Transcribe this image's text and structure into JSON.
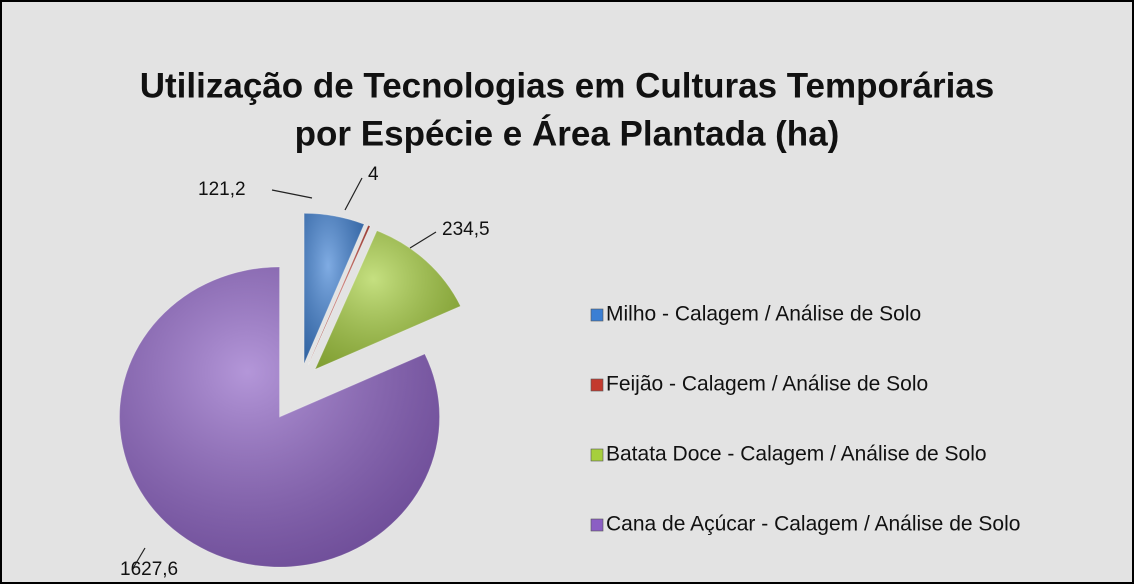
{
  "chart_data": {
    "type": "pie",
    "title": [
      "Utilização de Tecnologias em Culturas Temporárias",
      "por Espécie e Área Plantada (ha)"
    ],
    "categories": [
      "Milho - Calagem / Análise de Solo",
      "Feijão - Calagem / Análise de Solo",
      "Batata Doce - Calagem / Análise de Solo",
      "Cana de Açúcar - Calagem / Análise de Solo"
    ],
    "values": [
      121.2,
      4,
      234.5,
      1627.6
    ],
    "value_labels": [
      "121,2",
      "4",
      "234,5",
      "1627,6"
    ],
    "colors": [
      "#3b7fd4",
      "#c33a2e",
      "#a6cf3c",
      "#8b5ec4"
    ],
    "legend": "right"
  }
}
